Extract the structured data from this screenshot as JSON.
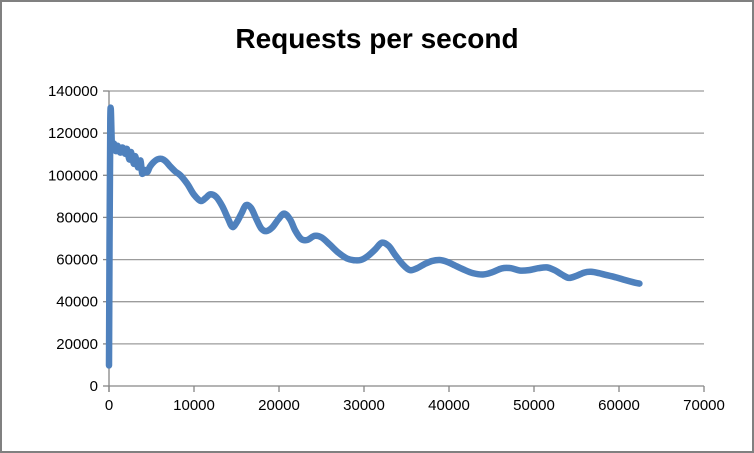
{
  "chart_data": {
    "type": "line",
    "title": "Requests per second",
    "xlabel": "",
    "ylabel": "",
    "xlim": [
      0,
      70000
    ],
    "ylim": [
      0,
      140000
    ],
    "x_ticks": [
      0,
      10000,
      20000,
      30000,
      40000,
      50000,
      60000,
      70000
    ],
    "y_ticks": [
      0,
      20000,
      40000,
      60000,
      80000,
      100000,
      120000,
      140000
    ],
    "grid": "horizontal-only",
    "legend": "none",
    "line_smooth": true,
    "series": [
      {
        "name": "Requests per second",
        "color": "#4F81BD",
        "points": [
          [
            0,
            9800
          ],
          [
            150,
            126500
          ],
          [
            350,
            113500
          ],
          [
            600,
            115000
          ],
          [
            800,
            111500
          ],
          [
            1000,
            114000
          ],
          [
            1300,
            110800
          ],
          [
            1600,
            113200
          ],
          [
            1900,
            110200
          ],
          [
            2100,
            112500
          ],
          [
            2400,
            107500
          ],
          [
            2600,
            111000
          ],
          [
            2900,
            105500
          ],
          [
            3100,
            109000
          ],
          [
            3400,
            103800
          ],
          [
            3700,
            107000
          ],
          [
            3900,
            100800
          ],
          [
            4200,
            102500
          ],
          [
            4500,
            101500
          ],
          [
            4800,
            104000
          ],
          [
            5200,
            106000
          ],
          [
            5700,
            107600
          ],
          [
            6200,
            107800
          ],
          [
            6700,
            106500
          ],
          [
            7200,
            104200
          ],
          [
            7800,
            101800
          ],
          [
            8400,
            100000
          ],
          [
            9200,
            96000
          ],
          [
            10000,
            90800
          ],
          [
            10800,
            87800
          ],
          [
            11400,
            89300
          ],
          [
            11900,
            91000
          ],
          [
            12600,
            89800
          ],
          [
            13300,
            85500
          ],
          [
            14000,
            79500
          ],
          [
            14500,
            75500
          ],
          [
            15000,
            77500
          ],
          [
            15600,
            82000
          ],
          [
            16100,
            85800
          ],
          [
            16700,
            84500
          ],
          [
            17300,
            79500
          ],
          [
            17900,
            74800
          ],
          [
            18500,
            73500
          ],
          [
            19200,
            75200
          ],
          [
            19900,
            79000
          ],
          [
            20600,
            81800
          ],
          [
            21300,
            79000
          ],
          [
            21900,
            73800
          ],
          [
            22600,
            69800
          ],
          [
            23300,
            69300
          ],
          [
            24200,
            71300
          ],
          [
            25000,
            70500
          ],
          [
            26000,
            67000
          ],
          [
            27000,
            63200
          ],
          [
            28000,
            60500
          ],
          [
            28800,
            59700
          ],
          [
            29600,
            59800
          ],
          [
            30400,
            61500
          ],
          [
            31300,
            64800
          ],
          [
            32100,
            68000
          ],
          [
            32900,
            66500
          ],
          [
            33700,
            62000
          ],
          [
            34600,
            57500
          ],
          [
            35400,
            55000
          ],
          [
            36200,
            55800
          ],
          [
            37100,
            57800
          ],
          [
            38000,
            59300
          ],
          [
            38900,
            59800
          ],
          [
            39800,
            58900
          ],
          [
            40700,
            57200
          ],
          [
            41700,
            55300
          ],
          [
            42800,
            53600
          ],
          [
            44000,
            52900
          ],
          [
            45100,
            54000
          ],
          [
            46200,
            55800
          ],
          [
            47300,
            55900
          ],
          [
            48300,
            54800
          ],
          [
            49400,
            55000
          ],
          [
            50500,
            55900
          ],
          [
            51500,
            56300
          ],
          [
            52400,
            55000
          ],
          [
            53300,
            52800
          ],
          [
            54100,
            51300
          ],
          [
            55000,
            52300
          ],
          [
            55900,
            53800
          ],
          [
            56700,
            54200
          ],
          [
            57600,
            53600
          ],
          [
            58600,
            52600
          ],
          [
            59700,
            51500
          ],
          [
            60700,
            50300
          ],
          [
            61700,
            49200
          ],
          [
            62400,
            48600
          ]
        ]
      }
    ]
  },
  "style": {
    "background": "#FFFFFF",
    "border_color": "#808080",
    "gridline_color": "#9C9C9C",
    "axis_color": "#868686",
    "label_color": "#000000",
    "title_color": "#000000",
    "line_width": 6.5
  }
}
